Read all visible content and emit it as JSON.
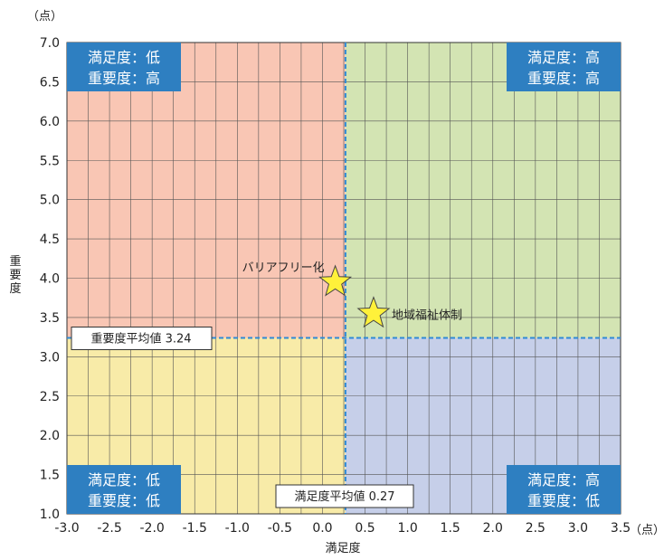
{
  "chart_data": {
    "type": "scatter",
    "title": "",
    "xlabel": "満足度",
    "ylabel": "重要度",
    "x_unit": "（点）",
    "y_unit": "（点）",
    "xlim": [
      -3.0,
      3.5
    ],
    "ylim": [
      1.0,
      7.0
    ],
    "x_ticks": [
      "-3.0",
      "-2.5",
      "-2.0",
      "-1.5",
      "-1.0",
      "-0.5",
      "0.0",
      "0.5",
      "1.0",
      "1.5",
      "2.0",
      "2.5",
      "3.0",
      "3.5"
    ],
    "y_ticks": [
      "1.0",
      "1.5",
      "2.0",
      "2.5",
      "3.0",
      "3.5",
      "4.0",
      "4.5",
      "5.0",
      "5.5",
      "6.0",
      "6.5",
      "7.0"
    ],
    "grid": true,
    "x_avg": 0.27,
    "y_avg": 3.24,
    "x_avg_label": "満足度平均値 0.27",
    "y_avg_label": "重要度平均値 3.24",
    "points": [
      {
        "label": "バリアフリー化",
        "x": 0.15,
        "y": 3.95
      },
      {
        "label": "地域福祉体制",
        "x": 0.6,
        "y": 3.55
      }
    ],
    "quadrants": [
      {
        "position": "top-left",
        "lines": [
          "満足度：低",
          "重要度：高"
        ],
        "color": "#f9c6b4"
      },
      {
        "position": "top-right",
        "lines": [
          "満足度：高",
          "重要度：高"
        ],
        "color": "#d3e4b3"
      },
      {
        "position": "bottom-left",
        "lines": [
          "満足度：低",
          "重要度：低"
        ],
        "color": "#f8eba8"
      },
      {
        "position": "bottom-right",
        "lines": [
          "満足度：高",
          "重要度：低"
        ],
        "color": "#c6cfe9"
      }
    ],
    "colors": {
      "label_box": "#2e7fc1",
      "avg_line": "#2f8ad6",
      "grid": "#555555",
      "star_fill": "#fff13a",
      "star_stroke": "#444444"
    }
  }
}
